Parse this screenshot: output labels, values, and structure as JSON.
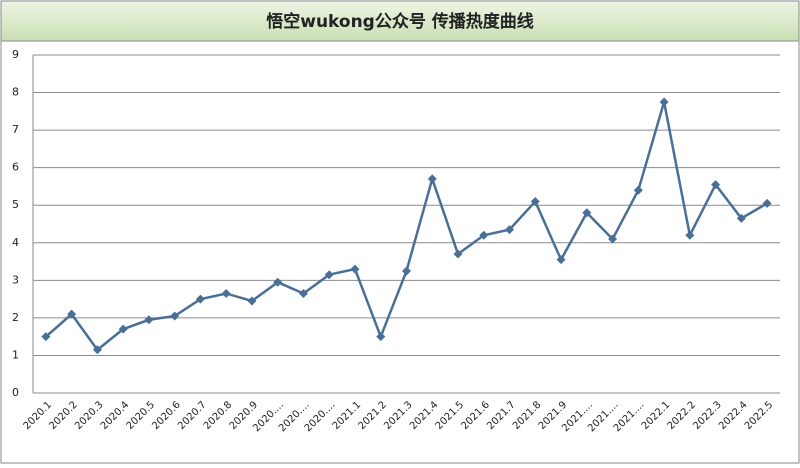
{
  "chart_data": {
    "type": "line",
    "title": "悟空wukong公众号  传播热度曲线",
    "categories": [
      "2020.1",
      "2020.2",
      "2020.3",
      "2020.4",
      "2020.5",
      "2020.6",
      "2020.7",
      "2020.8",
      "2020.9",
      "2020....",
      "2020....",
      "2020....",
      "2021.1",
      "2021.2",
      "2021.3",
      "2021.4",
      "2021.5",
      "2021.6",
      "2021.7",
      "2021.8",
      "2021.9",
      "2021....",
      "2021....",
      "2021....",
      "2022.1",
      "2022.2",
      "2022.3",
      "2022.4",
      "2022.5"
    ],
    "values": [
      1.5,
      2.1,
      1.15,
      1.7,
      1.95,
      2.05,
      2.5,
      2.65,
      2.45,
      2.95,
      2.65,
      3.15,
      3.3,
      1.5,
      3.25,
      5.7,
      3.7,
      4.2,
      4.35,
      5.1,
      3.55,
      4.8,
      4.1,
      5.4,
      7.75,
      4.2,
      5.55,
      4.65,
      5.05
    ],
    "color": "#4a6f96",
    "ylim": [
      0,
      9
    ],
    "yticks": [
      0,
      1,
      2,
      3,
      4,
      5,
      6,
      7,
      8,
      9
    ],
    "grid": true
  }
}
